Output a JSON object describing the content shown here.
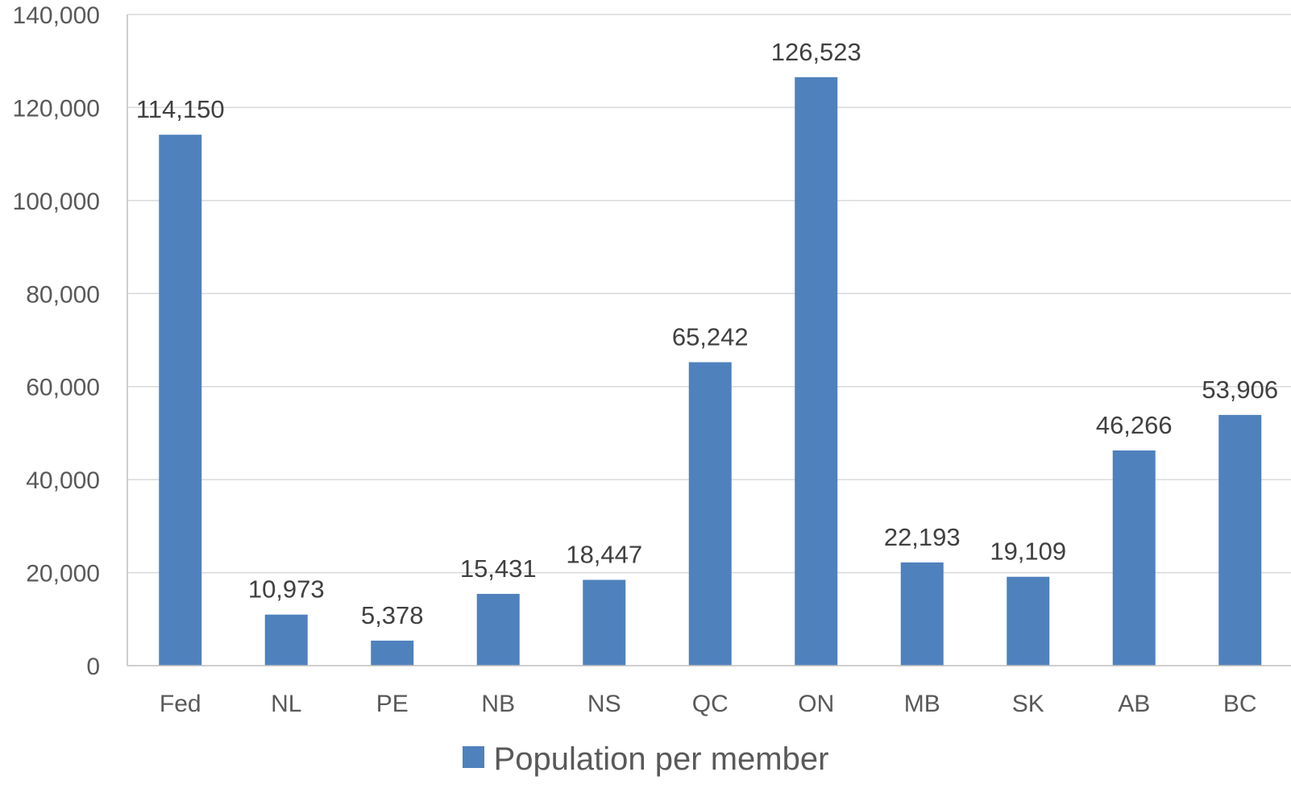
{
  "chart_data": {
    "type": "bar",
    "categories": [
      "Fed",
      "NL",
      "PE",
      "NB",
      "NS",
      "QC",
      "ON",
      "MB",
      "SK",
      "AB",
      "BC"
    ],
    "series": [
      {
        "name": "Population per member",
        "values": [
          114150,
          10973,
          5378,
          15431,
          18447,
          65242,
          126523,
          22193,
          19109,
          46266,
          53906
        ],
        "labels": [
          "114,150",
          "10,973",
          "5,378",
          "15,431",
          "18,447",
          "65,242",
          "126,523",
          "22,193",
          "19,109",
          "46,266",
          "53,906"
        ]
      }
    ],
    "yticks": [
      "0",
      "20,000",
      "40,000",
      "60,000",
      "80,000",
      "100,000",
      "120,000",
      "140,000"
    ],
    "ylim": [
      0,
      140000
    ],
    "grid": true,
    "legend": "bottom",
    "colors": {
      "bar": "#4f81bd",
      "grid": "#d9d9d9",
      "axis": "#bfbfbf"
    }
  }
}
